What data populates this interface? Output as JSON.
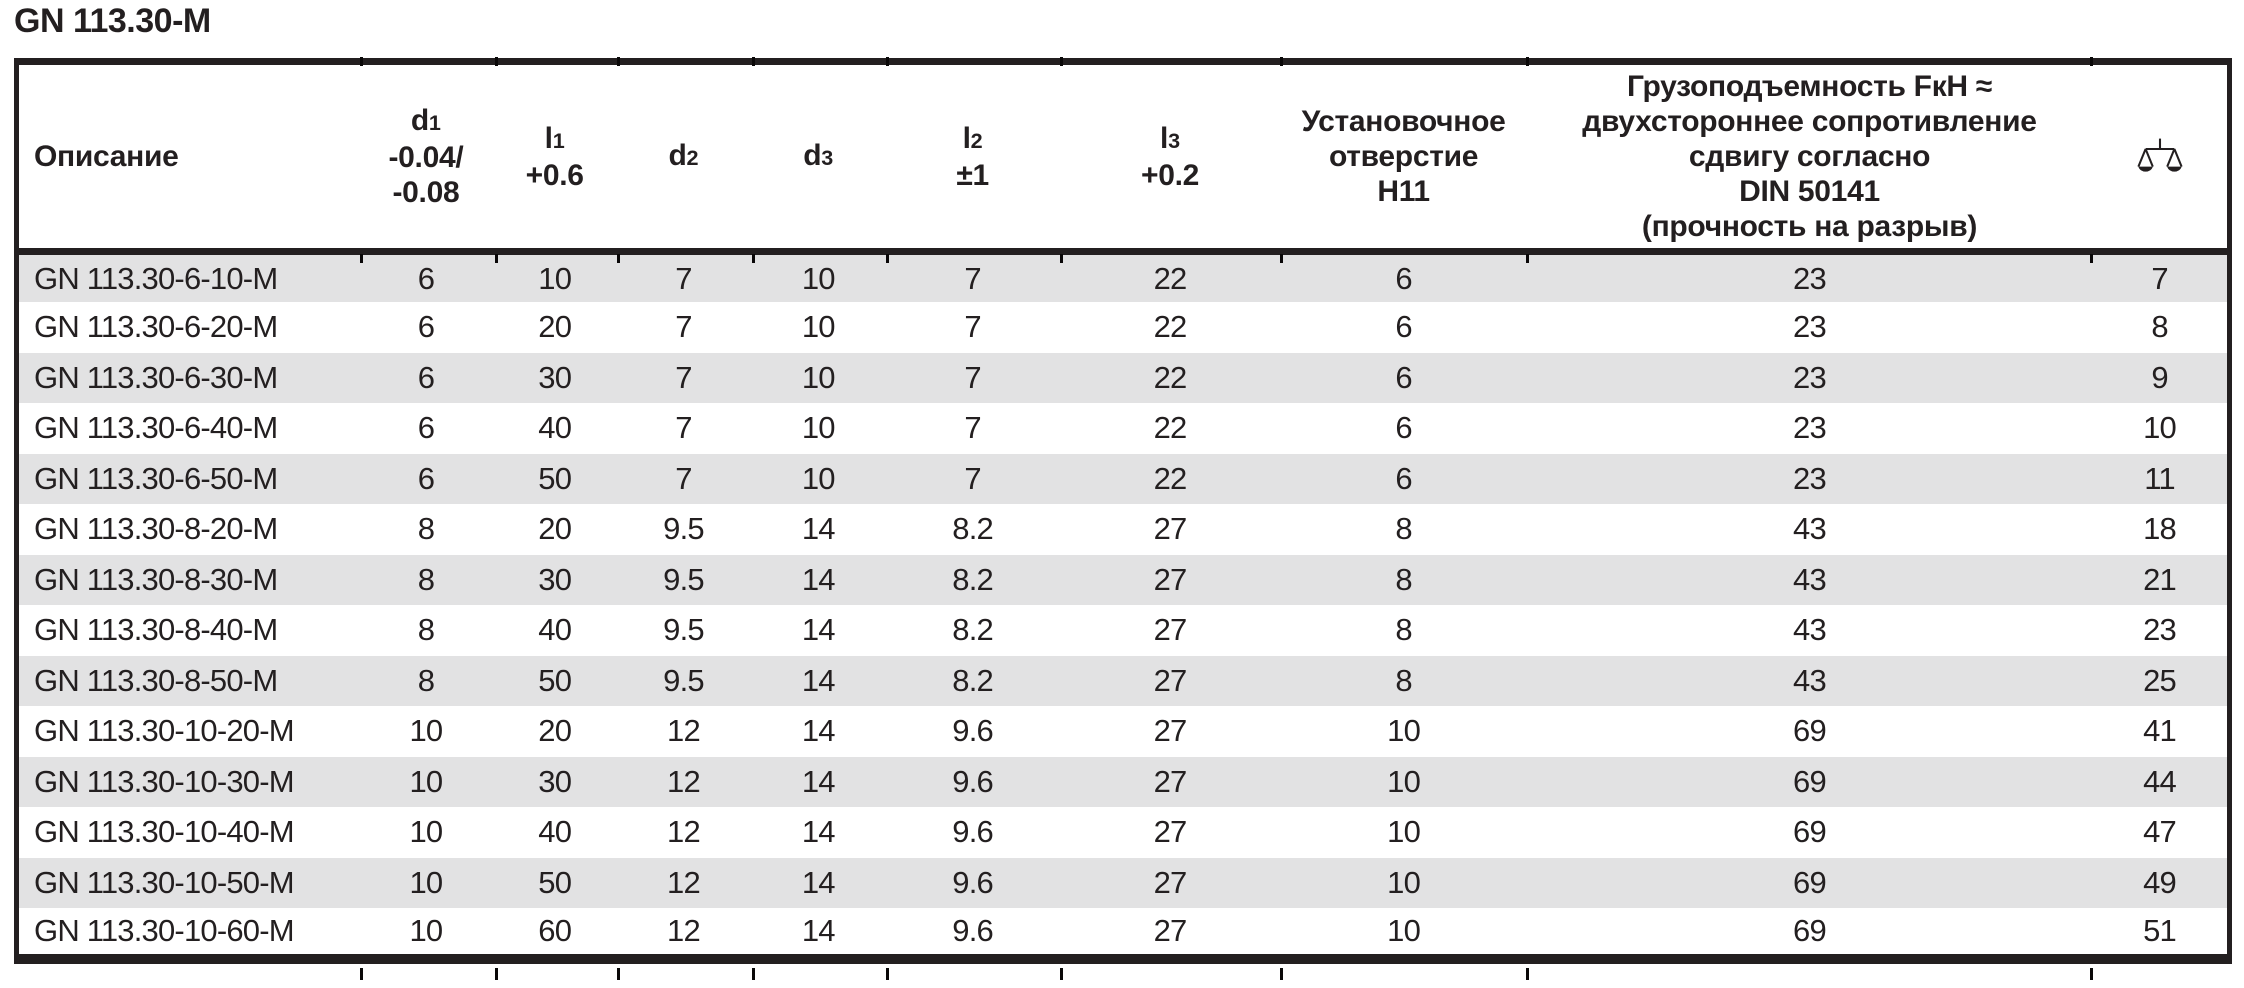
{
  "title": "GN 113.30-M",
  "colors": {
    "ink": "#231f20",
    "stripe": "#e2e2e3",
    "background": "#ffffff"
  },
  "icons": {
    "weight_column": "scale-icon"
  },
  "table": {
    "headers": {
      "description": "Описание",
      "d1": {
        "base": "d",
        "sub": "1",
        "tol": [
          "-0.04/",
          "-0.08"
        ]
      },
      "l1": {
        "base": "l",
        "sub": "1",
        "tol": [
          "+0.6"
        ]
      },
      "d2": {
        "base": "d",
        "sub": "2"
      },
      "d3": {
        "base": "d",
        "sub": "3"
      },
      "l2": {
        "base": "l",
        "sub": "2",
        "tol": [
          "±1"
        ]
      },
      "l3": {
        "base": "l",
        "sub": "3",
        "tol": [
          "+0.2"
        ]
      },
      "mounting_hole": {
        "lines": [
          "Установочное",
          "отверстие",
          "H11"
        ]
      },
      "load_capacity": {
        "lines": [
          "Грузоподъемность FкН ≈",
          "двухстороннее сопротивление",
          "сдвигу согласно",
          "DIN 50141",
          "(прочность на разрыв)"
        ]
      }
    },
    "rows": [
      {
        "name": "GN 113.30-6-10-M",
        "values": [
          "6",
          "10",
          "7",
          "10",
          "7",
          "22",
          "6",
          "23",
          "7"
        ]
      },
      {
        "name": "GN 113.30-6-20-M",
        "values": [
          "6",
          "20",
          "7",
          "10",
          "7",
          "22",
          "6",
          "23",
          "8"
        ]
      },
      {
        "name": "GN 113.30-6-30-M",
        "values": [
          "6",
          "30",
          "7",
          "10",
          "7",
          "22",
          "6",
          "23",
          "9"
        ]
      },
      {
        "name": "GN 113.30-6-40-M",
        "values": [
          "6",
          "40",
          "7",
          "10",
          "7",
          "22",
          "6",
          "23",
          "10"
        ]
      },
      {
        "name": "GN 113.30-6-50-M",
        "values": [
          "6",
          "50",
          "7",
          "10",
          "7",
          "22",
          "6",
          "23",
          "11"
        ]
      },
      {
        "name": "GN 113.30-8-20-M",
        "values": [
          "8",
          "20",
          "9.5",
          "14",
          "8.2",
          "27",
          "8",
          "43",
          "18"
        ]
      },
      {
        "name": "GN 113.30-8-30-M",
        "values": [
          "8",
          "30",
          "9.5",
          "14",
          "8.2",
          "27",
          "8",
          "43",
          "21"
        ]
      },
      {
        "name": "GN 113.30-8-40-M",
        "values": [
          "8",
          "40",
          "9.5",
          "14",
          "8.2",
          "27",
          "8",
          "43",
          "23"
        ]
      },
      {
        "name": "GN 113.30-8-50-M",
        "values": [
          "8",
          "50",
          "9.5",
          "14",
          "8.2",
          "27",
          "8",
          "43",
          "25"
        ]
      },
      {
        "name": "GN 113.30-10-20-M",
        "values": [
          "10",
          "20",
          "12",
          "14",
          "9.6",
          "27",
          "10",
          "69",
          "41"
        ]
      },
      {
        "name": "GN 113.30-10-30-M",
        "values": [
          "10",
          "30",
          "12",
          "14",
          "9.6",
          "27",
          "10",
          "69",
          "44"
        ]
      },
      {
        "name": "GN 113.30-10-40-M",
        "values": [
          "10",
          "40",
          "12",
          "14",
          "9.6",
          "27",
          "10",
          "69",
          "47"
        ]
      },
      {
        "name": "GN 113.30-10-50-M",
        "values": [
          "10",
          "50",
          "12",
          "14",
          "9.6",
          "27",
          "10",
          "69",
          "49"
        ]
      },
      {
        "name": "GN 113.30-10-60-M",
        "values": [
          "10",
          "60",
          "12",
          "14",
          "9.6",
          "27",
          "10",
          "69",
          "51"
        ]
      }
    ]
  }
}
